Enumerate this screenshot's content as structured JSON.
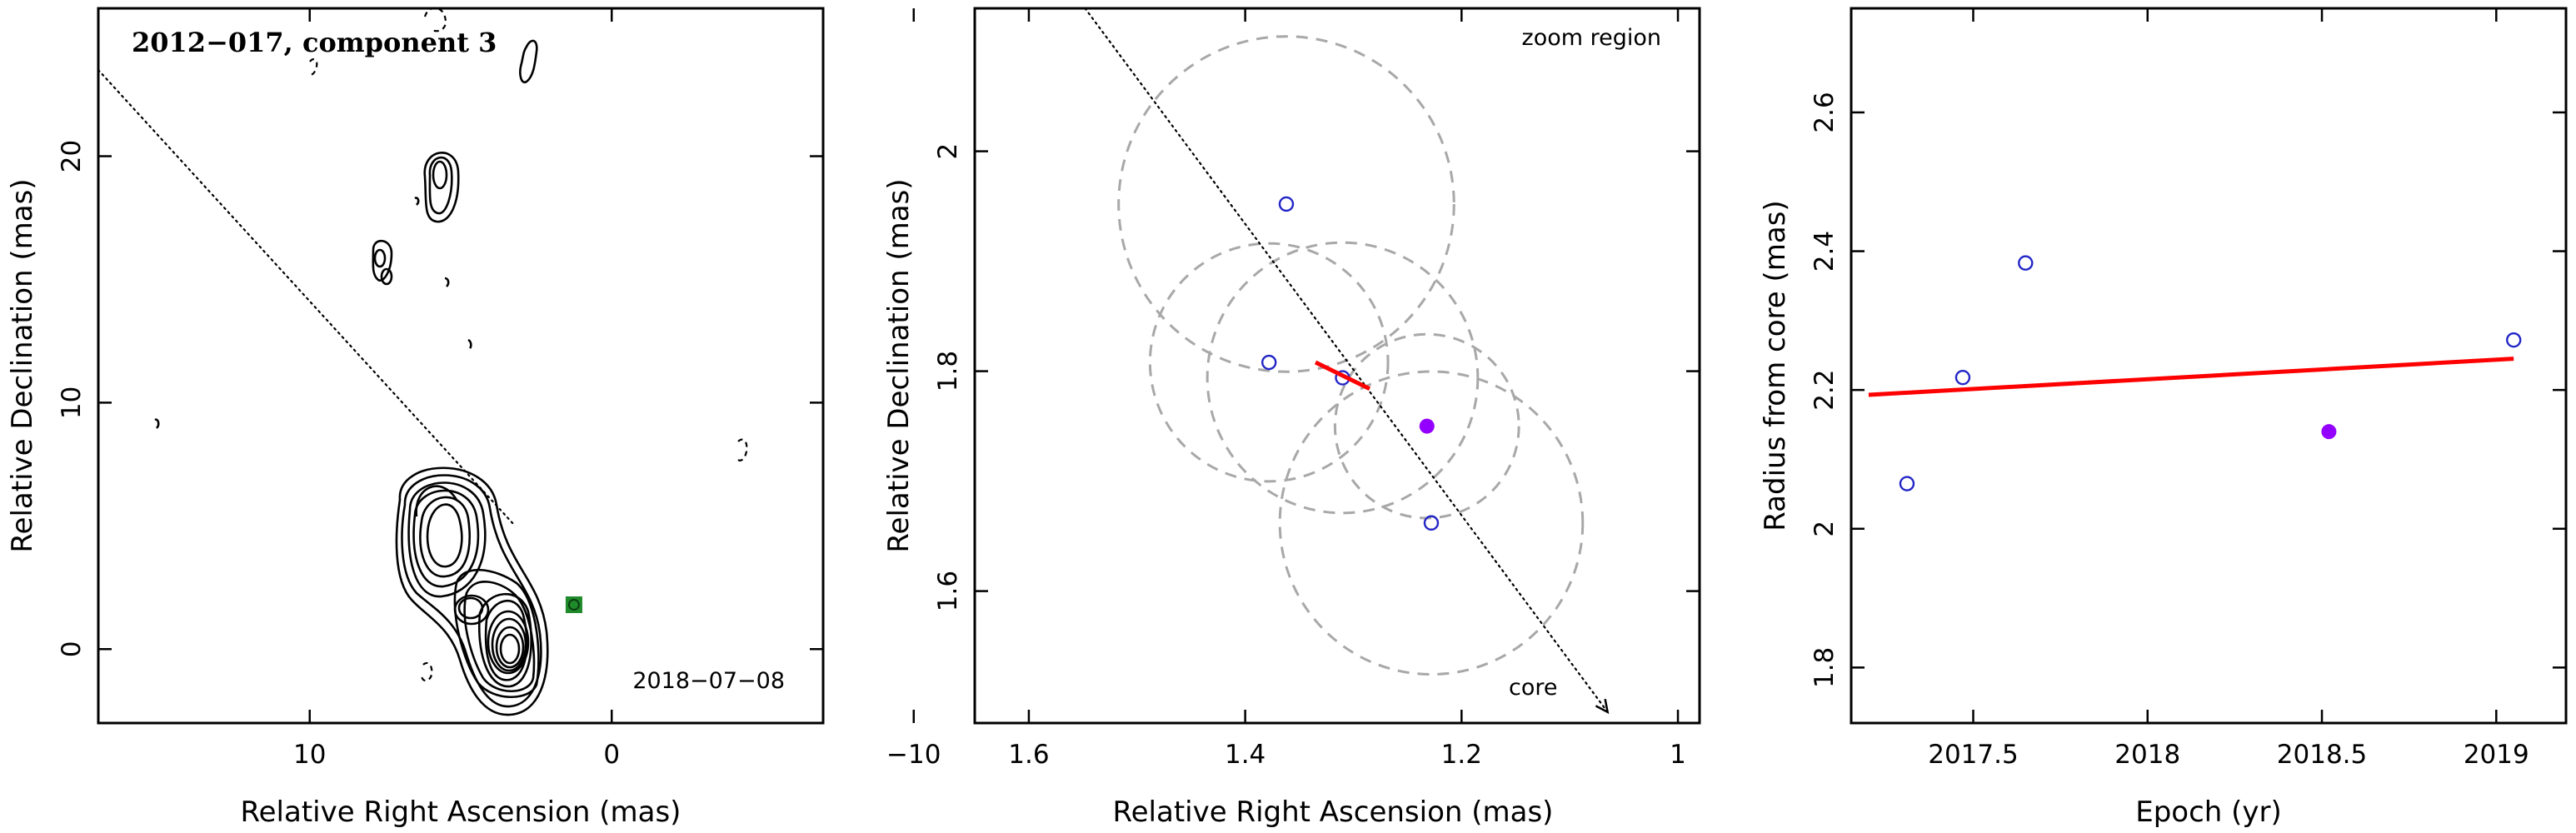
{
  "chart_data": [
    {
      "type": "contour",
      "title": "2012−017, component 3",
      "date_label": "2018−07−08",
      "xlabel": "Relative Right Ascension (mas)",
      "ylabel": "Relative Declination (mas)",
      "xlim": [
        17,
        -7
      ],
      "ylim": [
        -3,
        26
      ],
      "xticks": [
        10,
        0,
        -10
      ],
      "xtick_labels": [
        "10",
        "0",
        "−10"
      ],
      "yticks": [
        0,
        10,
        20
      ],
      "ytick_labels": [
        "0",
        "10",
        "20"
      ],
      "direction_line": {
        "from": [
          17,
          23.5
        ],
        "to": [
          3.2,
          5.0
        ]
      },
      "component_marker": {
        "x": 1.25,
        "y": 1.8,
        "color": "#1f8a2a"
      },
      "contour_color": "#000000"
    },
    {
      "type": "scatter",
      "annotation": "zoom region",
      "core_label": "core",
      "xlabel": "Relative Right Ascension (mas)",
      "ylabel": "Relative Declination (mas)",
      "xlim": [
        1.65,
        0.98
      ],
      "ylim": [
        1.48,
        2.13
      ],
      "xticks": [
        1.6,
        1.4,
        1.2,
        1
      ],
      "xtick_labels": [
        "1.6",
        "1.4",
        "1.2",
        "1"
      ],
      "yticks": [
        1.6,
        1.8,
        2
      ],
      "ytick_labels": [
        "1.6",
        "1.8",
        "2"
      ],
      "direction_line": {
        "from": [
          1.548,
          2.13
        ],
        "to": [
          1.065,
          1.49
        ]
      },
      "open_points": [
        {
          "x": 1.362,
          "y": 1.952,
          "r": 0.155
        },
        {
          "x": 1.378,
          "y": 1.808,
          "r": 0.11
        },
        {
          "x": 1.31,
          "y": 1.794,
          "r": 0.125
        },
        {
          "x": 1.228,
          "y": 1.662,
          "r": 0.14
        }
      ],
      "filled_point": {
        "x": 1.232,
        "y": 1.75,
        "r": 0.085,
        "color": "#9400ff"
      },
      "fit_segment": {
        "from": [
          1.335,
          1.808
        ],
        "to": [
          1.285,
          1.784
        ],
        "color": "#ff0000"
      }
    },
    {
      "type": "scatter",
      "xlabel": "Epoch (yr)",
      "ylabel": "Radius from core (mas)",
      "xlim": [
        2017.15,
        2019.2
      ],
      "ylim": [
        1.72,
        2.75
      ],
      "xticks": [
        2017.5,
        2018,
        2018.5,
        2019
      ],
      "xtick_labels": [
        "2017.5",
        "2018",
        "2018.5",
        "2019"
      ],
      "yticks": [
        1.8,
        2.0,
        2.2,
        2.4,
        2.6
      ],
      "ytick_labels": [
        "1.8",
        "2",
        "2.2",
        "2.4",
        "2.6"
      ],
      "points_open": [
        {
          "x": 2017.31,
          "y": 2.065
        },
        {
          "x": 2017.47,
          "y": 2.218
        },
        {
          "x": 2017.65,
          "y": 2.383
        },
        {
          "x": 2019.05,
          "y": 2.272
        }
      ],
      "point_filled": {
        "x": 2018.52,
        "y": 2.14,
        "color": "#9400ff"
      },
      "fit_line": {
        "x": [
          2017.2,
          2019.05
        ],
        "y": [
          2.193,
          2.245
        ],
        "color": "#ff0000"
      }
    }
  ]
}
